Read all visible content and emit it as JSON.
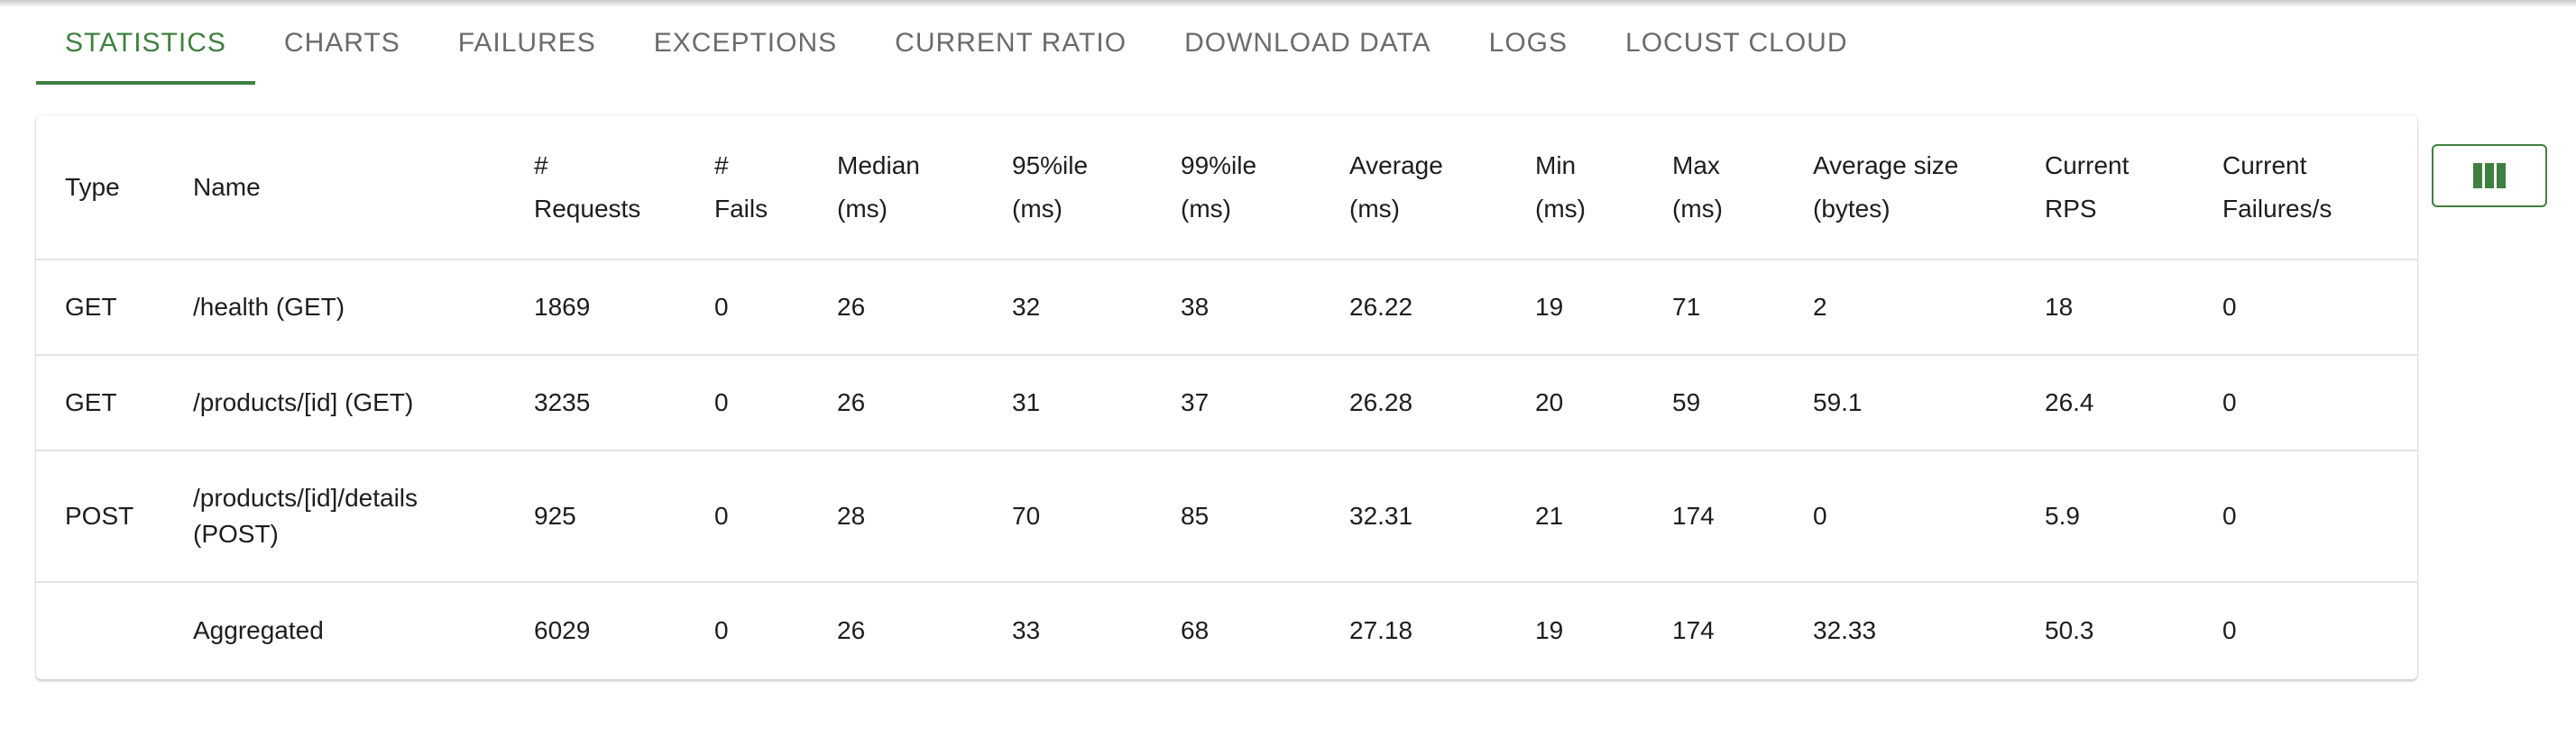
{
  "tabs": [
    {
      "label": "STATISTICS",
      "active": true
    },
    {
      "label": "CHARTS"
    },
    {
      "label": "FAILURES"
    },
    {
      "label": "EXCEPTIONS"
    },
    {
      "label": "CURRENT RATIO"
    },
    {
      "label": "DOWNLOAD DATA"
    },
    {
      "label": "LOGS"
    },
    {
      "label": "LOCUST CLOUD"
    }
  ],
  "table": {
    "headers": [
      [
        "Type"
      ],
      [
        "Name"
      ],
      [
        "#",
        "Requests"
      ],
      [
        "#",
        "Fails"
      ],
      [
        "Median",
        "(ms)"
      ],
      [
        "95%ile",
        "(ms)"
      ],
      [
        "99%ile",
        "(ms)"
      ],
      [
        "Average",
        "(ms)"
      ],
      [
        "Min",
        "(ms)"
      ],
      [
        "Max",
        "(ms)"
      ],
      [
        "Average size",
        "(bytes)"
      ],
      [
        "Current",
        "RPS"
      ],
      [
        "Current",
        "Failures/s"
      ]
    ],
    "rows": [
      [
        "GET",
        "/health (GET)",
        "1869",
        "0",
        "26",
        "32",
        "38",
        "26.22",
        "19",
        "71",
        "2",
        "18",
        "0"
      ],
      [
        "GET",
        "/products/[id] (GET)",
        "3235",
        "0",
        "26",
        "31",
        "37",
        "26.28",
        "20",
        "59",
        "59.1",
        "26.4",
        "0"
      ],
      [
        "POST",
        "/products/[id]/details (POST)",
        "925",
        "0",
        "28",
        "70",
        "85",
        "32.31",
        "21",
        "174",
        "0",
        "5.9",
        "0"
      ],
      [
        "",
        "Aggregated",
        "6029",
        "0",
        "26",
        "33",
        "68",
        "27.18",
        "19",
        "174",
        "32.33",
        "50.3",
        "0"
      ]
    ]
  },
  "colors": {
    "accent": "#3f7f3f"
  },
  "icons": {
    "column_selector": "view-column-icon"
  }
}
